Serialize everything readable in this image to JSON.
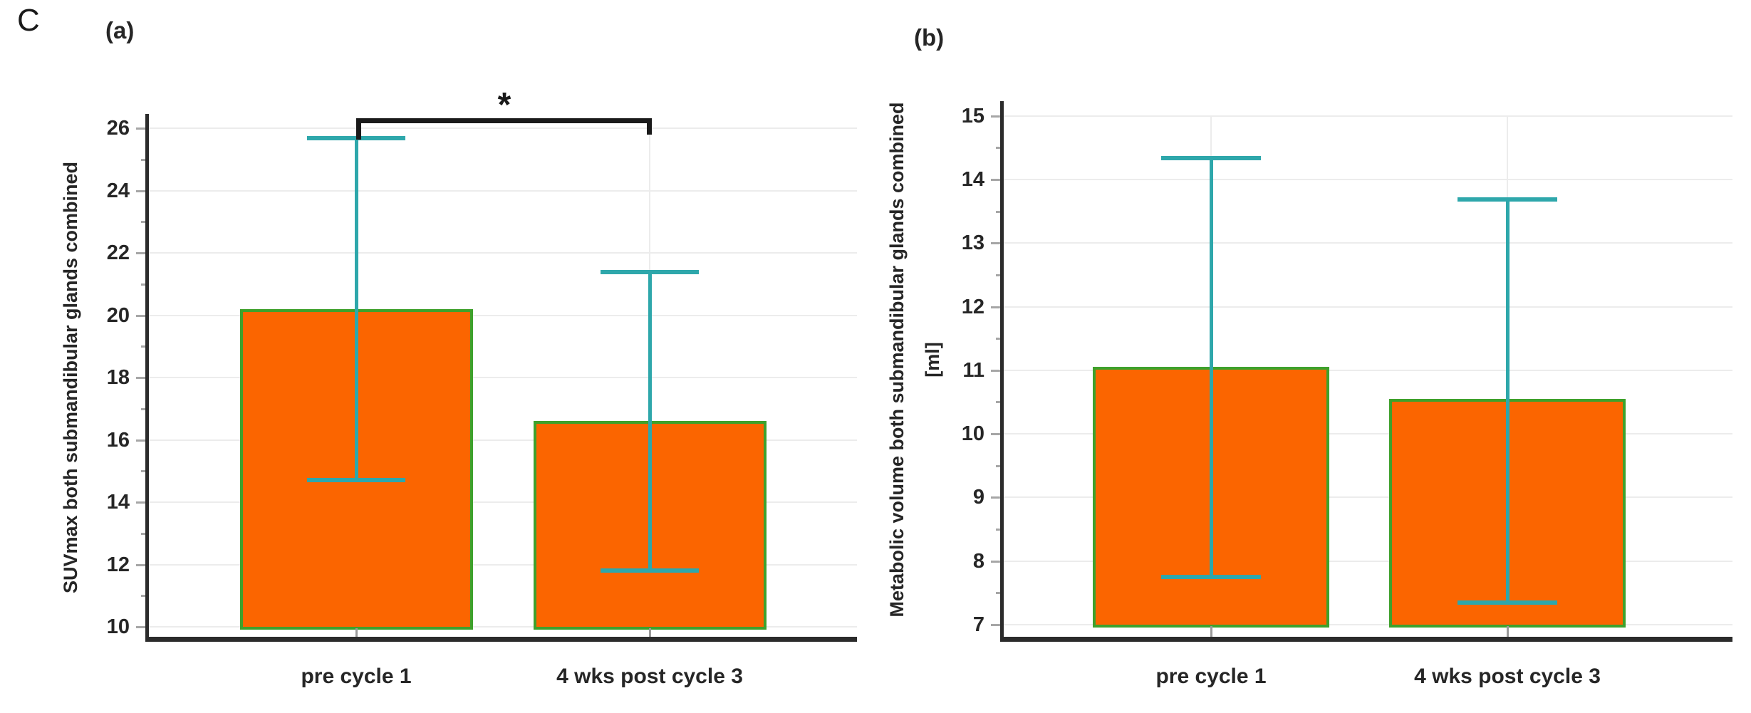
{
  "figure": {
    "panel_label": "C"
  },
  "colors": {
    "bar_fill": "#fb6500",
    "bar_border": "#3ea12c",
    "error_bar": "#2ea7ab",
    "gridline": "#ececec",
    "axis": "#2b2b2b",
    "text": "#262626",
    "bracket": "#1a1a1a"
  },
  "chart_data": [
    {
      "type": "bar",
      "panel_tag": "(a)",
      "ylabel": "SUVmax both submandibular glands combined",
      "ylabel_unit": "",
      "ylim": [
        10,
        26
      ],
      "y_major_tick_step": 2,
      "y_minor_tick_step": 1,
      "y_tick_labels": [
        "10",
        "12",
        "14",
        "16",
        "18",
        "20",
        "22",
        "24",
        "26"
      ],
      "grid": "horizontal-major plus vertical-at-category-centers",
      "legend": "none",
      "categories": [
        "pre cycle 1",
        "4 wks post cycle 3"
      ],
      "values": [
        20.2,
        16.6
      ],
      "error_bars": {
        "top": [
          25.7,
          21.4
        ],
        "bottom": [
          14.7,
          11.8
        ]
      },
      "significance": {
        "marker": "*",
        "from_category": 0,
        "to_category": 1
      }
    },
    {
      "type": "bar",
      "panel_tag": "(b)",
      "ylabel": "Metabolic volume both submandibular glands combined",
      "ylabel_unit": "[ml]",
      "ylim": [
        7,
        15
      ],
      "y_major_tick_step": 1,
      "y_minor_tick_step": 0.5,
      "y_tick_labels": [
        "7",
        "8",
        "9",
        "10",
        "11",
        "12",
        "13",
        "14",
        "15"
      ],
      "grid": "horizontal-major plus vertical-at-category-centers",
      "legend": "none",
      "categories": [
        "pre cycle 1",
        "4 wks post cycle 3"
      ],
      "values": [
        11.05,
        10.55
      ],
      "error_bars": {
        "top": [
          14.35,
          13.7
        ],
        "bottom": [
          7.75,
          7.35
        ]
      },
      "significance": null
    }
  ]
}
